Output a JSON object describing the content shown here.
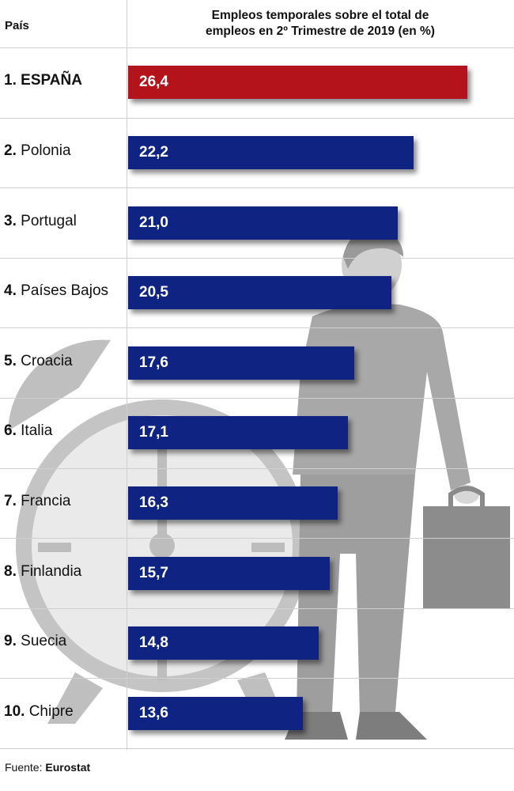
{
  "header": {
    "country_label": "País",
    "title_line1": "Empleos temporales sobre el total de",
    "title_line2": "empleos en 2º Trimestre de 2019 (en %)"
  },
  "colors": {
    "highlight": "#b5131b",
    "default": "#0e2382"
  },
  "chart_data": {
    "type": "bar",
    "orientation": "horizontal",
    "title": "Empleos temporales sobre el total de empleos en 2º Trimestre de 2019 (en %)",
    "xlabel": "",
    "ylabel": "País",
    "rows": [
      {
        "rank": "1.",
        "name": "ESPAÑA",
        "value": 26.4,
        "value_label": "26,4",
        "highlight": true
      },
      {
        "rank": "2.",
        "name": "Polonia",
        "value": 22.2,
        "value_label": "22,2",
        "highlight": false
      },
      {
        "rank": "3.",
        "name": "Portugal",
        "value": 21.0,
        "value_label": "21,0",
        "highlight": false
      },
      {
        "rank": "4.",
        "name": "Países Bajos",
        "value": 20.5,
        "value_label": "20,5",
        "highlight": false
      },
      {
        "rank": "5.",
        "name": "Croacia",
        "value": 17.6,
        "value_label": "17,6",
        "highlight": false
      },
      {
        "rank": "6.",
        "name": "Italia",
        "value": 17.1,
        "value_label": "17,1",
        "highlight": false
      },
      {
        "rank": "7.",
        "name": "Francia",
        "value": 16.3,
        "value_label": "16,3",
        "highlight": false
      },
      {
        "rank": "8.",
        "name": "Finlandia",
        "value": 15.7,
        "value_label": "15,7",
        "highlight": false
      },
      {
        "rank": "9.",
        "name": "Suecia",
        "value": 14.8,
        "value_label": "14,8",
        "highlight": false
      },
      {
        "rank": "10.",
        "name": "Chipre",
        "value": 13.6,
        "value_label": "13,6",
        "highlight": false
      }
    ]
  },
  "source": {
    "prefix": "Fuente: ",
    "name": "Eurostat"
  }
}
